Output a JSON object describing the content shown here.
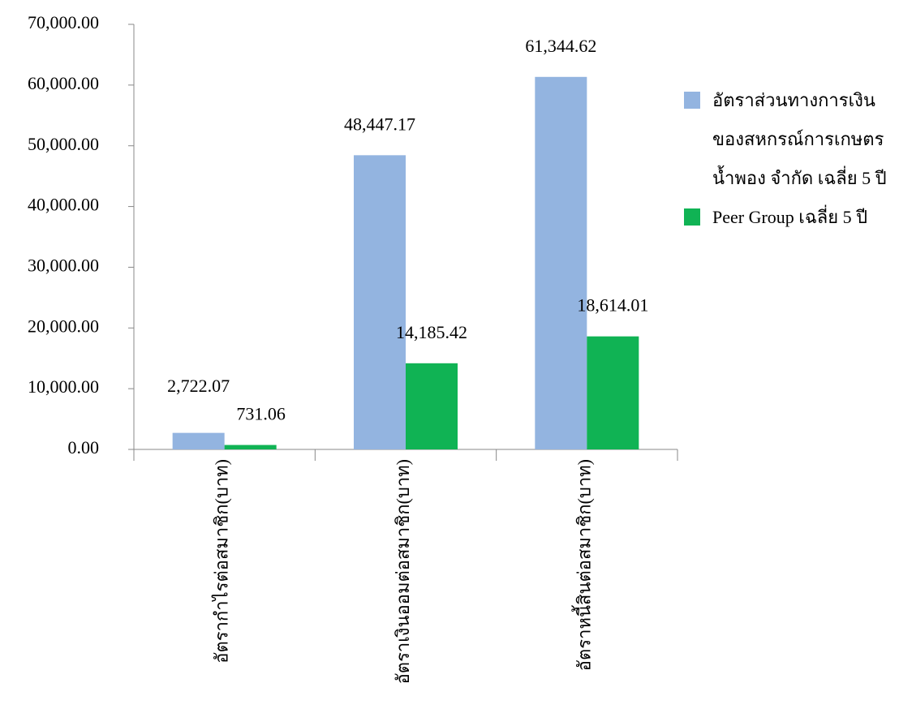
{
  "chart_data": {
    "type": "bar",
    "categories": [
      "อัตรากำไรต่อสมาชิก(บาท)",
      "อัตราเงินออมต่อสมาชิก(บาท)",
      "อัตราหนี้สินต่อสมาชิก(บาท)"
    ],
    "series": [
      {
        "name": "อัตราส่วนทางการเงินของสหกรณ์การเกษตรน้ำพอง จำกัด เฉลี่ย 5 ปี",
        "color": "#93b4e0",
        "values": [
          2722.07,
          48447.17,
          61344.62
        ],
        "value_labels": [
          "2,722.07",
          "48,447.17",
          "61,344.62"
        ]
      },
      {
        "name": "Peer Group เฉลี่ย 5 ปี",
        "color": "#10b354",
        "values": [
          731.06,
          14185.42,
          18614.01
        ],
        "value_labels": [
          "731.06",
          "14,185.42",
          "18,614.01"
        ]
      }
    ],
    "ylim": [
      0,
      70000
    ],
    "yticks": [
      {
        "value": 0,
        "label": "0.00"
      },
      {
        "value": 10000,
        "label": "10,000.00"
      },
      {
        "value": 20000,
        "label": "20,000.00"
      },
      {
        "value": 30000,
        "label": "30,000.00"
      },
      {
        "value": 40000,
        "label": "40,000.00"
      },
      {
        "value": 50000,
        "label": "50,000.00"
      },
      {
        "value": 60000,
        "label": "60,000.00"
      },
      {
        "value": 70000,
        "label": "70,000.00"
      }
    ],
    "grid": false,
    "legend": "right"
  }
}
